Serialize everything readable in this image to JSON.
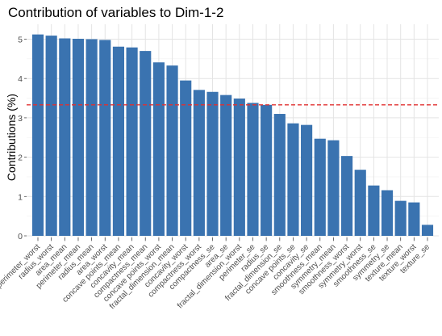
{
  "chart_data": {
    "type": "bar",
    "title": "Contribution of variables to Dim-1-2",
    "xlabel": "",
    "ylabel": "Contributions (%)",
    "ylim": [
      0,
      5.3
    ],
    "yticks": [
      0,
      1,
      2,
      3,
      4,
      5
    ],
    "grid": true,
    "bar_color": "#3a73b0",
    "reference_line": {
      "value": 3.33,
      "color": "#e03030",
      "style": "dashed"
    },
    "categories": [
      "perimeter_worst",
      "radius_worst",
      "area_mean",
      "perimeter_mean",
      "radius_mean",
      "area_worst",
      "concave points_mean",
      "concavity_mean",
      "compactness_mean",
      "concave points_worst",
      "fractal_dimension_mean",
      "concavity_worst",
      "compactness_worst",
      "compactness_se",
      "area_se",
      "fractal_dimension_worst",
      "perimeter_se",
      "radius_se",
      "fractal_dimension_se",
      "concave points_se",
      "concavity_se",
      "smoothness_mean",
      "symmetry_mean",
      "smoothness_worst",
      "symmetry_worst",
      "smoothness_se",
      "symmetry_se",
      "texture_mean",
      "texture_worst",
      "texture_se"
    ],
    "values": [
      5.12,
      5.09,
      5.02,
      5.01,
      5.0,
      4.98,
      4.81,
      4.79,
      4.7,
      4.41,
      4.33,
      3.95,
      3.71,
      3.66,
      3.58,
      3.49,
      3.38,
      3.33,
      3.1,
      2.86,
      2.82,
      2.47,
      2.43,
      2.03,
      1.68,
      1.28,
      1.16,
      0.89,
      0.85,
      0.28
    ]
  }
}
